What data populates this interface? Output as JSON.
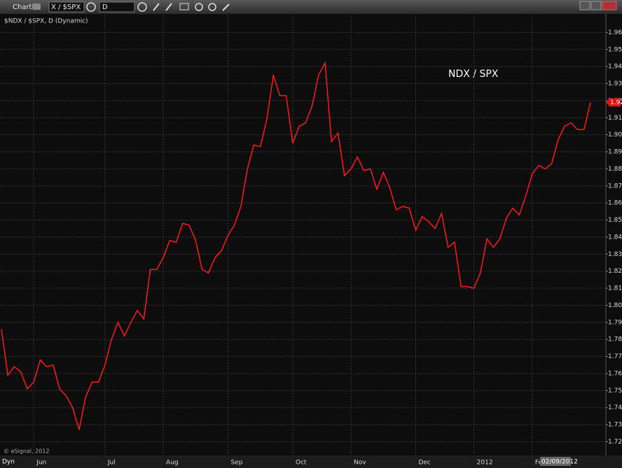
{
  "ui": {
    "window_title": "Chart",
    "symbol": "X / $SPX",
    "interval": "D",
    "watermark": "© eSignal, 2012",
    "mode_label": "Dyn"
  },
  "chart_data": {
    "type": "line",
    "title": "$NDX / $SPX, D (Dynamic)",
    "annotation": "NDX / SPX",
    "categories": [
      null,
      null,
      null,
      null,
      null,
      "Jun",
      null,
      null,
      null,
      null,
      null,
      null,
      null,
      null,
      null,
      null,
      "Jul",
      null,
      null,
      null,
      null,
      null,
      null,
      null,
      null,
      "Aug",
      null,
      null,
      null,
      null,
      null,
      null,
      null,
      null,
      null,
      "Sep",
      null,
      null,
      null,
      null,
      null,
      null,
      null,
      null,
      null,
      "Oct",
      null,
      null,
      null,
      null,
      null,
      null,
      null,
      null,
      "Nov",
      null,
      null,
      null,
      null,
      null,
      null,
      null,
      null,
      null,
      "Dec",
      null,
      null,
      null,
      null,
      null,
      null,
      null,
      null,
      "2012",
      null,
      null,
      null,
      null,
      null,
      null,
      null,
      null,
      "Feb",
      null,
      null,
      null,
      null,
      null,
      null,
      null,
      null,
      null
    ],
    "series": [
      {
        "name": "NDX / SPX",
        "color": "#ff1a1a",
        "values": [
          1.786,
          1.759,
          1.764,
          1.761,
          1.751,
          1.755,
          1.768,
          1.764,
          1.765,
          1.751,
          1.747,
          1.74,
          1.727,
          1.746,
          1.755,
          1.755,
          1.765,
          1.78,
          1.79,
          1.782,
          1.79,
          1.797,
          1.792,
          1.821,
          1.821,
          1.828,
          1.838,
          1.837,
          1.848,
          1.847,
          1.838,
          1.821,
          1.819,
          1.828,
          1.832,
          1.841,
          1.847,
          1.858,
          1.88,
          1.894,
          1.893,
          1.909,
          1.935,
          1.923,
          1.923,
          1.895,
          1.905,
          1.907,
          1.917,
          1.935,
          1.942,
          1.896,
          1.901,
          1.876,
          1.88,
          1.887,
          1.879,
          1.88,
          1.868,
          1.878,
          1.869,
          1.856,
          1.858,
          1.857,
          1.844,
          1.852,
          1.849,
          1.845,
          1.854,
          1.834,
          1.837,
          1.811,
          1.811,
          1.81,
          1.819,
          1.839,
          1.834,
          1.839,
          1.851,
          1.857,
          1.853,
          1.864,
          1.877,
          1.882,
          1.88,
          1.883,
          1.897,
          1.905,
          1.907,
          1.903,
          1.903,
          1.919
        ]
      }
    ],
    "last_value_label": "1.92",
    "cursor_date_label": "02/09/2012",
    "ylim": [
      1.712,
      1.97
    ],
    "yticks": [
      1.72,
      1.73,
      1.74,
      1.75,
      1.76,
      1.77,
      1.78,
      1.79,
      {
        "value": 1.8,
        "label": "1.80"
      },
      1.81,
      1.82,
      1.83,
      1.84,
      1.85,
      1.86,
      1.87,
      1.88,
      1.89,
      {
        "value": 1.9,
        "label": "1.90"
      },
      1.91,
      1.92,
      1.93,
      1.94,
      1.95,
      1.96
    ],
    "grid": true
  }
}
